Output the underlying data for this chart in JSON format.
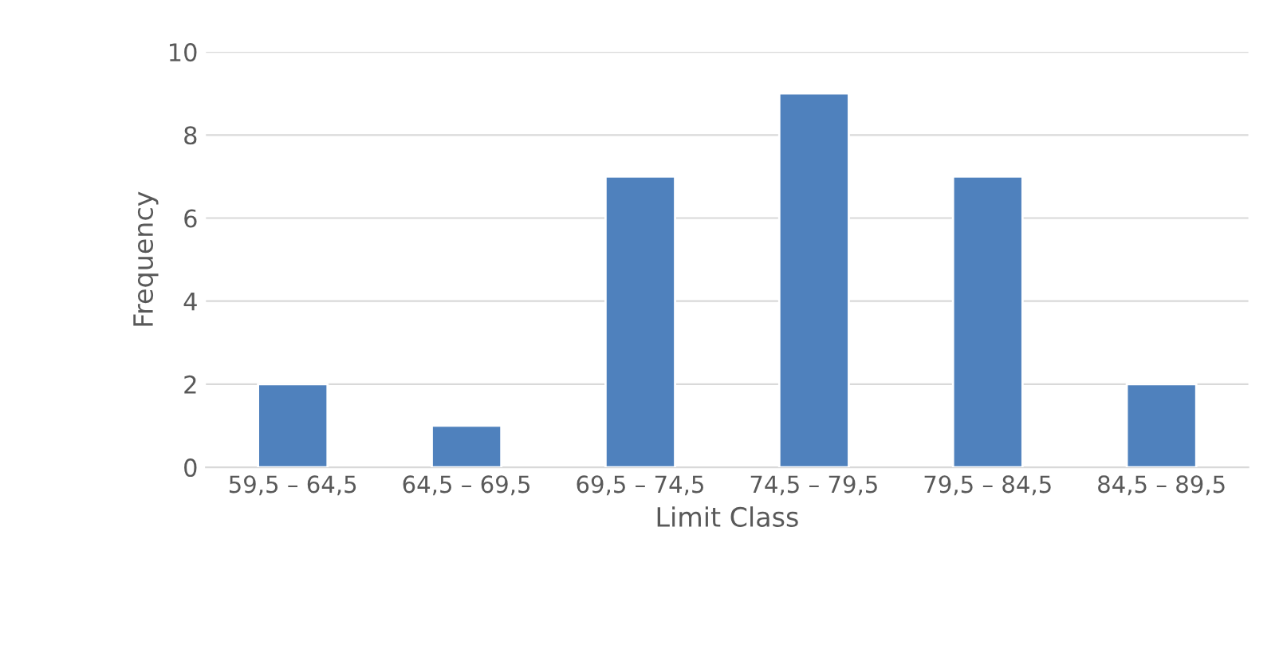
{
  "chart_data": {
    "type": "bar",
    "xlabel": "Limit Class",
    "ylabel": "Frequency",
    "categories": [
      "59,5 – 64,5",
      "64,5 – 69,5",
      "69,5 – 74,5",
      "74,5 – 79,5",
      "79,5 – 84,5",
      "84,5 – 89,5"
    ],
    "values": [
      2,
      1,
      7,
      9,
      7,
      2
    ],
    "color": "#4f81bd",
    "ylim": [
      0,
      10
    ],
    "yticks": [
      0,
      2,
      4,
      6,
      8,
      10
    ],
    "grid": "y",
    "legend": false
  }
}
